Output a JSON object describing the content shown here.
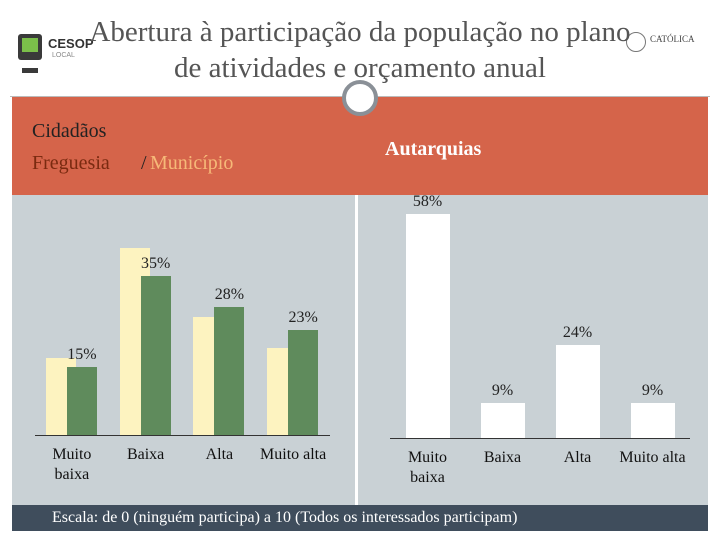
{
  "header": {
    "title": "Abertura à participação da população no plano de atividades e orçamento anual",
    "logo_left": "CESOP",
    "logo_left_sub": "LOCAL",
    "logo_right": "CATÓLICA"
  },
  "chart_data": [
    {
      "type": "bar",
      "title": "Cidadãos",
      "legend_separator": "/",
      "categories": [
        "Muito baixa",
        "Baixa",
        "Alta",
        "Muito alta"
      ],
      "series": [
        {
          "name": "Freguesia",
          "color": "#fdf3c0",
          "values": [
            17,
            41,
            26,
            19
          ]
        },
        {
          "name": "Município",
          "color": "#5f8b5c",
          "values": [
            15,
            35,
            28,
            23
          ],
          "value_labels": [
            "15%",
            "35%",
            "28%",
            "23%"
          ]
        }
      ],
      "ylim": [
        0,
        45
      ]
    },
    {
      "type": "bar",
      "title": "Autarquias",
      "categories": [
        "Muito baixa",
        "Baixa",
        "Alta",
        "Muito alta"
      ],
      "values": [
        58,
        9,
        24,
        9
      ],
      "value_labels": [
        "58%",
        "9%",
        "24%",
        "9%"
      ],
      "color": "#ffffff",
      "ylim": [
        0,
        60
      ]
    }
  ],
  "footer": "Escala: de 0 (ninguém participa) a 10 (Todos os interessados participam)"
}
